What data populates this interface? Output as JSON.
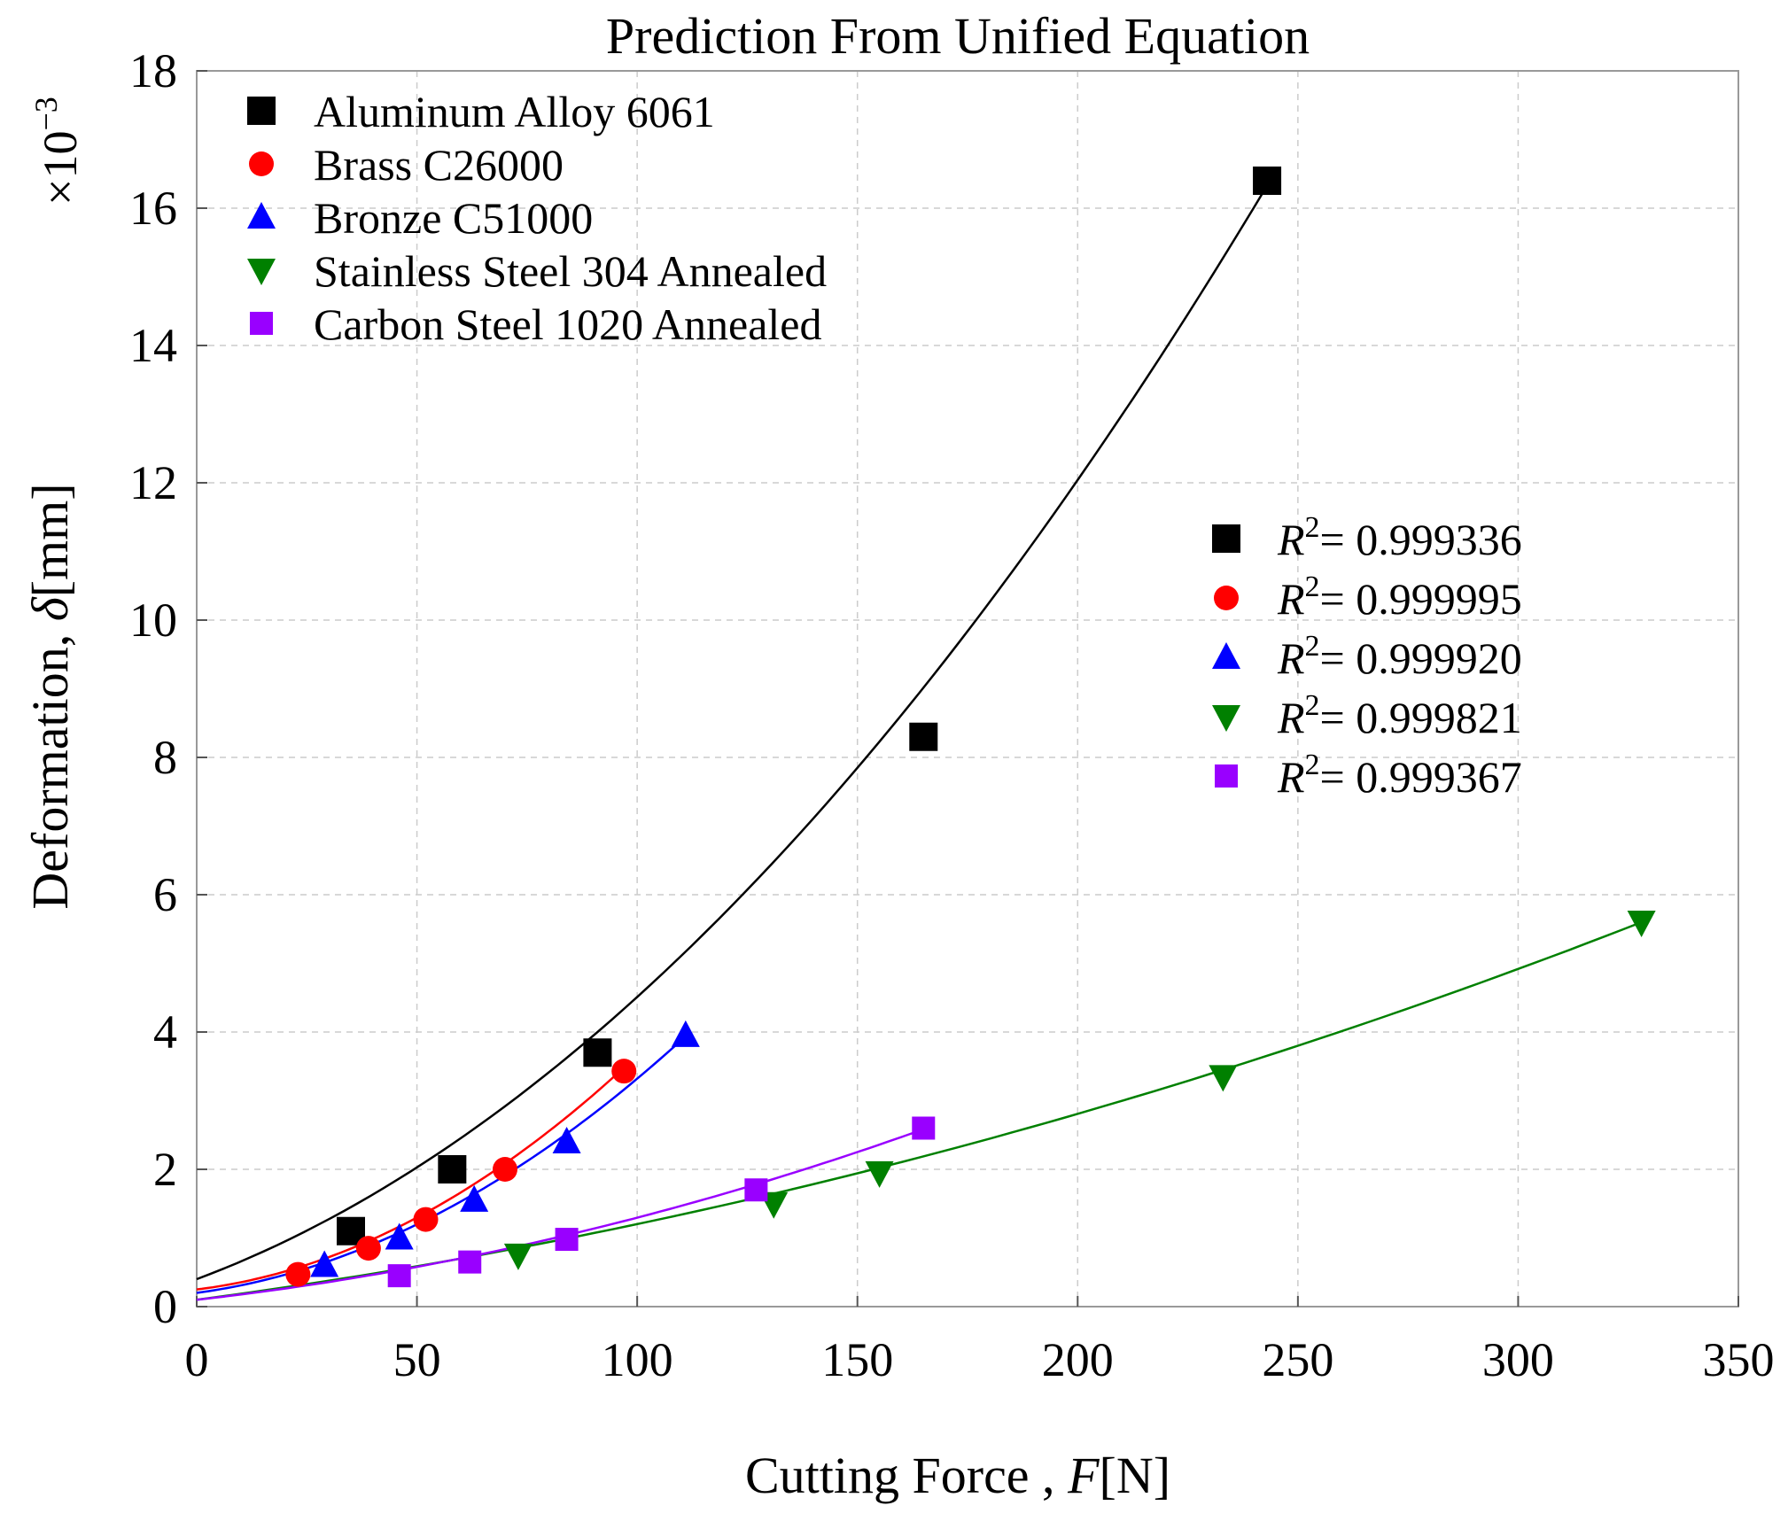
{
  "chart_data": {
    "type": "scatter",
    "title": "Prediction From Unified Equation",
    "xlabel": "Cutting Force , ",
    "xlabel_var": "F",
    "xlabel_unit": "[N]",
    "ylabel": "Deformation, ",
    "ylabel_var": "δ",
    "ylabel_unit": "[mm]",
    "y_multiplier_base": "×10",
    "y_multiplier_exp": "−3",
    "xlim": [
      0,
      350
    ],
    "ylim": [
      0,
      18
    ],
    "xticks": [
      "0",
      "50",
      "100",
      "150",
      "200",
      "250",
      "300",
      "350"
    ],
    "yticks": [
      "0",
      "2",
      "4",
      "6",
      "8",
      "10",
      "12",
      "14",
      "16",
      "18"
    ],
    "grid": true,
    "legend_location": "top-left",
    "r2_legend_location": "center-right",
    "series": [
      {
        "name": "Aluminum Alloy 6061",
        "marker": "square",
        "color": "#000000",
        "x": [
          35,
          58,
          91,
          165,
          243
        ],
        "y": [
          1.1,
          2.0,
          3.7,
          8.3,
          16.4
        ],
        "fit_coeffs": [
          0.4,
          0.024,
          0.000171
        ],
        "fit_range": [
          0,
          243
        ],
        "r2_label": "R",
        "r2_exp": "2",
        "r2_value": "= 0.999336"
      },
      {
        "name": "Brass C26000",
        "marker": "circle",
        "color": "#ff0000",
        "x": [
          23,
          39,
          52,
          70,
          97
        ],
        "y": [
          0.47,
          0.85,
          1.27,
          2.0,
          3.43
        ],
        "fit_coeffs": [
          0.25,
          0.0078,
          0.000263
        ],
        "fit_range": [
          0,
          97
        ],
        "r2_label": "R",
        "r2_exp": "2",
        "r2_value": "= 0.999995"
      },
      {
        "name": "Bronze C51000",
        "marker": "triangle-up",
        "color": "#0000ff",
        "x": [
          29,
          46,
          63,
          84,
          111
        ],
        "y": [
          0.6,
          1.0,
          1.55,
          2.4,
          3.95
        ],
        "fit_coeffs": [
          0.2,
          0.0087,
          0.000225
        ],
        "fit_range": [
          0,
          111
        ],
        "r2_label": "R",
        "r2_exp": "2",
        "r2_value": "= 0.999920"
      },
      {
        "name": "Stainless Steel 304 Annealed",
        "marker": "triangle-down",
        "color": "#008000",
        "x": [
          73,
          131,
          155,
          233,
          328
        ],
        "y": [
          0.75,
          1.5,
          1.95,
          3.35,
          5.6
        ],
        "fit_coeffs": [
          0.1,
          0.0085,
          2.52e-05
        ],
        "fit_range": [
          0,
          328
        ],
        "r2_label": "R",
        "r2_exp": "2",
        "r2_value": "= 0.999821"
      },
      {
        "name": "Carbon Steel 1020 Annealed",
        "marker": "square-small",
        "color": "#9900ff",
        "x": [
          46,
          62,
          84,
          127,
          165
        ],
        "y": [
          0.45,
          0.65,
          0.98,
          1.7,
          2.6
        ],
        "fit_coeffs": [
          0.1,
          0.0072,
          4.76e-05
        ],
        "fit_range": [
          0,
          165
        ],
        "r2_label": "R",
        "r2_exp": "2",
        "r2_value": "= 0.999367"
      }
    ]
  }
}
